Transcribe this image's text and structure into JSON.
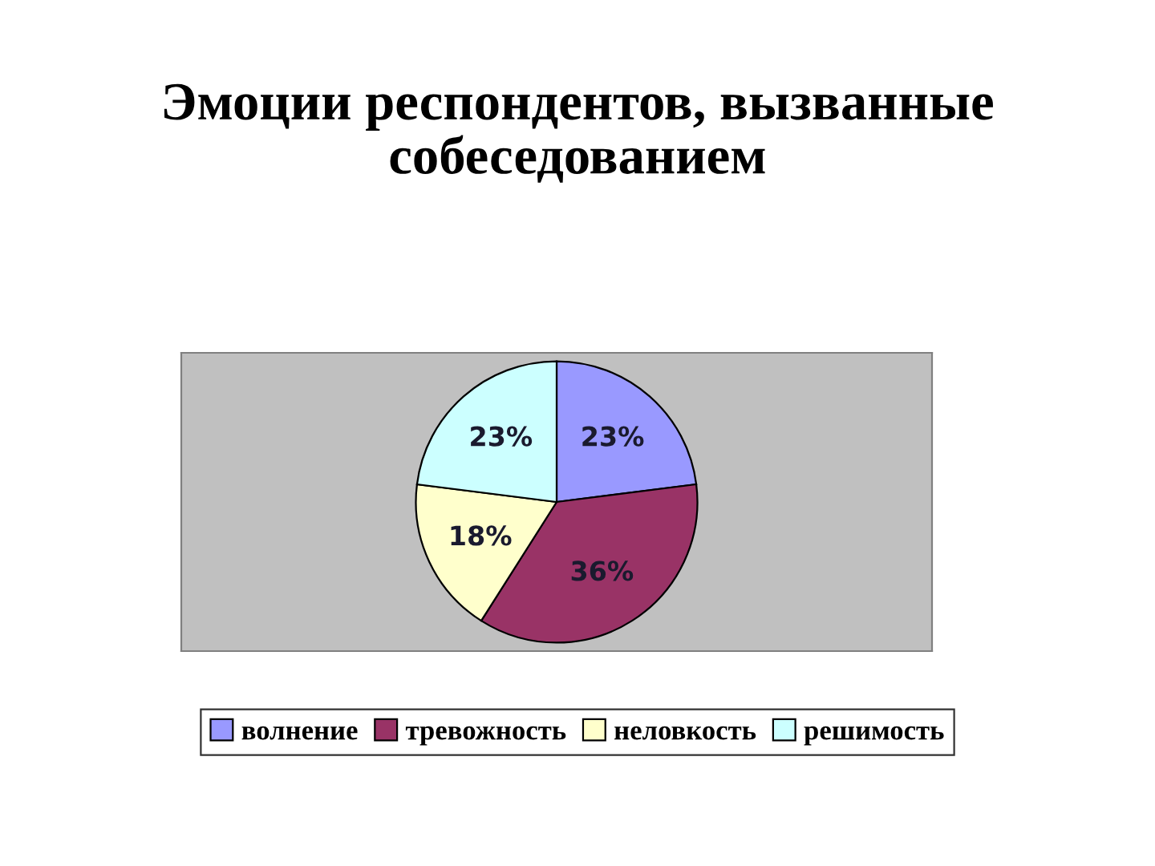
{
  "chart_data": {
    "type": "pie",
    "title": "Эмоции респондентов, вызванные\nсобеседованием",
    "categories": [
      "волнение",
      "тревожность",
      "неловкость",
      "решимость"
    ],
    "values": [
      23,
      36,
      18,
      23
    ],
    "colors": [
      "#9999ff",
      "#993366",
      "#ffffcc",
      "#ccffff"
    ],
    "value_labels": [
      "23%",
      "36%",
      "18%",
      "23%"
    ],
    "legend": "bottom"
  }
}
